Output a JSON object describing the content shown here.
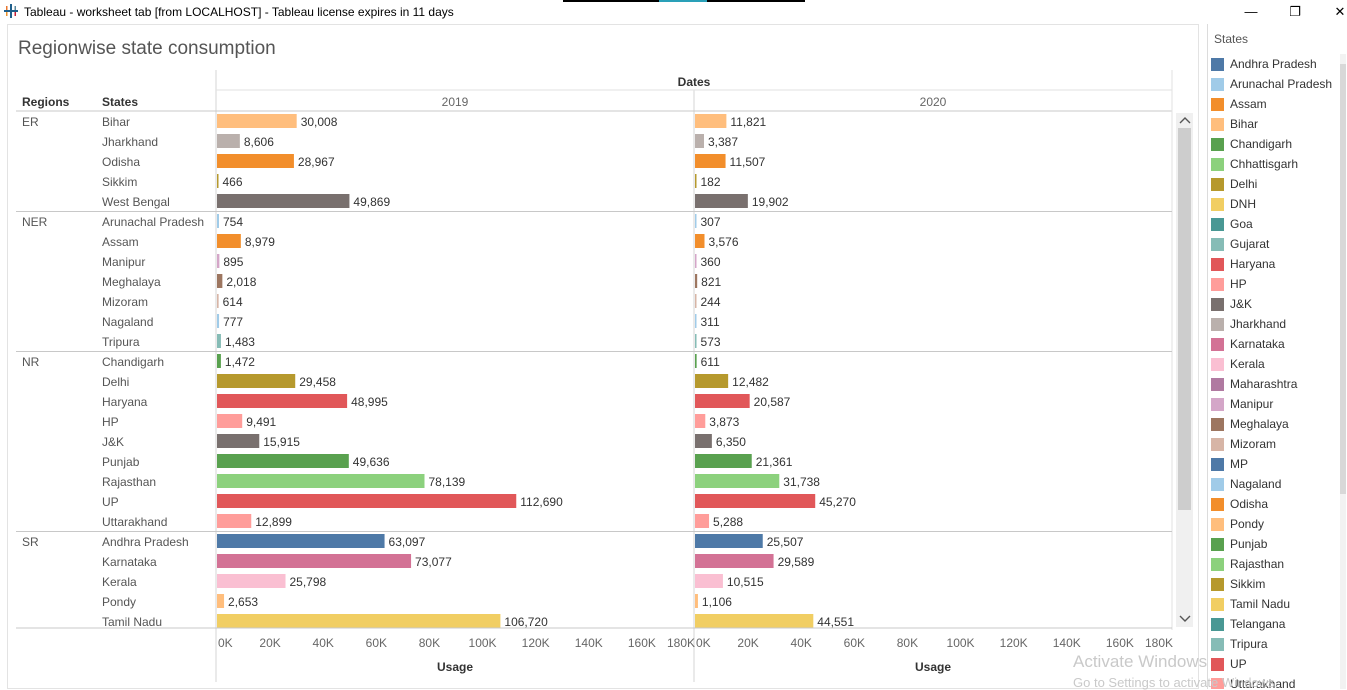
{
  "window": {
    "title": "Tableau - worksheet tab [from LOCALHOST] - Tableau license expires in 11 days",
    "minimize_glyph": "—",
    "restore_glyph": "❐",
    "close_glyph": "✕"
  },
  "sheet": {
    "title": "Regionwise state consumption"
  },
  "legend": {
    "title": "States",
    "items": [
      {
        "label": "Andhra Pradesh",
        "color": "#4e79a7"
      },
      {
        "label": "Arunachal Pradesh",
        "color": "#a0cbe8"
      },
      {
        "label": "Assam",
        "color": "#f28e2b"
      },
      {
        "label": "Bihar",
        "color": "#ffbe7d"
      },
      {
        "label": "Chandigarh",
        "color": "#59a14f"
      },
      {
        "label": "Chhattisgarh",
        "color": "#8cd17d"
      },
      {
        "label": "Delhi",
        "color": "#b6992d"
      },
      {
        "label": "DNH",
        "color": "#f1ce63"
      },
      {
        "label": "Goa",
        "color": "#499894"
      },
      {
        "label": "Gujarat",
        "color": "#86bcb6"
      },
      {
        "label": "Haryana",
        "color": "#e15759"
      },
      {
        "label": "HP",
        "color": "#ff9d9a"
      },
      {
        "label": "J&K",
        "color": "#79706e"
      },
      {
        "label": "Jharkhand",
        "color": "#bab0ac"
      },
      {
        "label": "Karnataka",
        "color": "#d37295"
      },
      {
        "label": "Kerala",
        "color": "#fabfd2"
      },
      {
        "label": "Maharashtra",
        "color": "#b07aa1"
      },
      {
        "label": "Manipur",
        "color": "#d4a6c8"
      },
      {
        "label": "Meghalaya",
        "color": "#9d7660"
      },
      {
        "label": "Mizoram",
        "color": "#d7b5a6"
      },
      {
        "label": "MP",
        "color": "#4e79a7"
      },
      {
        "label": "Nagaland",
        "color": "#a0cbe8"
      },
      {
        "label": "Odisha",
        "color": "#f28e2b"
      },
      {
        "label": "Pondy",
        "color": "#ffbe7d"
      },
      {
        "label": "Punjab",
        "color": "#59a14f"
      },
      {
        "label": "Rajasthan",
        "color": "#8cd17d"
      },
      {
        "label": "Sikkim",
        "color": "#b6992d"
      },
      {
        "label": "Tamil Nadu",
        "color": "#f1ce63"
      },
      {
        "label": "Telangana",
        "color": "#499894"
      },
      {
        "label": "Tripura",
        "color": "#86bcb6"
      },
      {
        "label": "UP",
        "color": "#e15759"
      },
      {
        "label": "Uttarakhand",
        "color": "#ff9d9a"
      }
    ]
  },
  "watermark": {
    "line1": "Activate Windows",
    "line2": "Go to Settings to activate Windows."
  },
  "chart_data": {
    "type": "bar",
    "title": "Regionwise state consumption",
    "column_header": "Dates",
    "row_headers": [
      "Regions",
      "States"
    ],
    "xlabel": "Usage",
    "xlim": [
      0,
      180000
    ],
    "x_ticks": [
      "0K",
      "20K",
      "40K",
      "60K",
      "80K",
      "100K",
      "120K",
      "140K",
      "160K",
      "180K"
    ],
    "tick_values": [
      0,
      20000,
      40000,
      60000,
      80000,
      100000,
      120000,
      140000,
      160000,
      180000
    ],
    "panes": [
      "2019",
      "2020"
    ],
    "regions": [
      {
        "name": "ER",
        "rows": [
          {
            "state": "Bihar",
            "values": [
              30008,
              11821
            ],
            "labels": [
              "30,008",
              "11,821"
            ],
            "color": "#ffbe7d"
          },
          {
            "state": "Jharkhand",
            "values": [
              8606,
              3387
            ],
            "labels": [
              "8,606",
              "3,387"
            ],
            "color": "#bab0ac"
          },
          {
            "state": "Odisha",
            "values": [
              28967,
              11507
            ],
            "labels": [
              "28,967",
              "11,507"
            ],
            "color": "#f28e2b"
          },
          {
            "state": "Sikkim",
            "values": [
              466,
              182
            ],
            "labels": [
              "466",
              "182"
            ],
            "color": "#b6992d"
          },
          {
            "state": "West Bengal",
            "values": [
              49869,
              19902
            ],
            "labels": [
              "49,869",
              "19,902"
            ],
            "color": "#79706e"
          }
        ]
      },
      {
        "name": "NER",
        "rows": [
          {
            "state": "Arunachal Pradesh",
            "values": [
              754,
              307
            ],
            "labels": [
              "754",
              "307"
            ],
            "color": "#a0cbe8"
          },
          {
            "state": "Assam",
            "values": [
              8979,
              3576
            ],
            "labels": [
              "8,979",
              "3,576"
            ],
            "color": "#f28e2b"
          },
          {
            "state": "Manipur",
            "values": [
              895,
              360
            ],
            "labels": [
              "895",
              "360"
            ],
            "color": "#d4a6c8"
          },
          {
            "state": "Meghalaya",
            "values": [
              2018,
              821
            ],
            "labels": [
              "2,018",
              "821"
            ],
            "color": "#9d7660"
          },
          {
            "state": "Mizoram",
            "values": [
              614,
              244
            ],
            "labels": [
              "614",
              "244"
            ],
            "color": "#d7b5a6"
          },
          {
            "state": "Nagaland",
            "values": [
              777,
              311
            ],
            "labels": [
              "777",
              "311"
            ],
            "color": "#a0cbe8"
          },
          {
            "state": "Tripura",
            "values": [
              1483,
              573
            ],
            "labels": [
              "1,483",
              "573"
            ],
            "color": "#86bcb6"
          }
        ]
      },
      {
        "name": "NR",
        "rows": [
          {
            "state": "Chandigarh",
            "values": [
              1472,
              611
            ],
            "labels": [
              "1,472",
              "611"
            ],
            "color": "#59a14f"
          },
          {
            "state": "Delhi",
            "values": [
              29458,
              12482
            ],
            "labels": [
              "29,458",
              "12,482"
            ],
            "color": "#b6992d"
          },
          {
            "state": "Haryana",
            "values": [
              48995,
              20587
            ],
            "labels": [
              "48,995",
              "20,587"
            ],
            "color": "#e15759"
          },
          {
            "state": "HP",
            "values": [
              9491,
              3873
            ],
            "labels": [
              "9,491",
              "3,873"
            ],
            "color": "#ff9d9a"
          },
          {
            "state": "J&K",
            "values": [
              15915,
              6350
            ],
            "labels": [
              "15,915",
              "6,350"
            ],
            "color": "#79706e"
          },
          {
            "state": "Punjab",
            "values": [
              49636,
              21361
            ],
            "labels": [
              "49,636",
              "21,361"
            ],
            "color": "#59a14f"
          },
          {
            "state": "Rajasthan",
            "values": [
              78139,
              31738
            ],
            "labels": [
              "78,139",
              "31,738"
            ],
            "color": "#8cd17d"
          },
          {
            "state": "UP",
            "values": [
              112690,
              45270
            ],
            "labels": [
              "112,690",
              "45,270"
            ],
            "color": "#e15759"
          },
          {
            "state": "Uttarakhand",
            "values": [
              12899,
              5288
            ],
            "labels": [
              "12,899",
              "5,288"
            ],
            "color": "#ff9d9a"
          }
        ]
      },
      {
        "name": "SR",
        "rows": [
          {
            "state": "Andhra Pradesh",
            "values": [
              63097,
              25507
            ],
            "labels": [
              "63,097",
              "25,507"
            ],
            "color": "#4e79a7"
          },
          {
            "state": "Karnataka",
            "values": [
              73077,
              29589
            ],
            "labels": [
              "73,077",
              "29,589"
            ],
            "color": "#d37295"
          },
          {
            "state": "Kerala",
            "values": [
              25798,
              10515
            ],
            "labels": [
              "25,798",
              "10,515"
            ],
            "color": "#fabfd2"
          },
          {
            "state": "Pondy",
            "values": [
              2653,
              1106
            ],
            "labels": [
              "2,653",
              "1,106"
            ],
            "color": "#ffbe7d"
          },
          {
            "state": "Tamil Nadu",
            "values": [
              106720,
              44551
            ],
            "labels": [
              "106,720",
              "44,551"
            ],
            "color": "#f1ce63"
          }
        ]
      }
    ]
  }
}
